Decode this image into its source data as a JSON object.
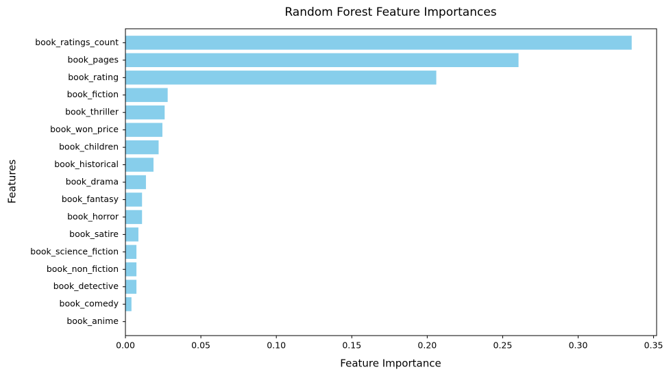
{
  "chart_data": {
    "type": "barh",
    "title": "Random Forest Feature Importances",
    "x_label": "Feature Importance",
    "y_label": "Features",
    "categories": [
      "book_ratings_count",
      "book_pages",
      "book_rating",
      "book_fiction",
      "book_thriller",
      "book_won_price",
      "book_children",
      "book_historical",
      "book_drama",
      "book_fantasy",
      "book_horror",
      "book_satire",
      "book_science_fiction",
      "book_non_fiction",
      "book_detective",
      "book_comedy",
      "book_anime"
    ],
    "values": [
      0.3355,
      0.2605,
      0.206,
      0.028,
      0.026,
      0.0245,
      0.022,
      0.0186,
      0.0136,
      0.011,
      0.011,
      0.0086,
      0.0073,
      0.0073,
      0.0073,
      0.004,
      0
    ],
    "color": "#87ceeb",
    "xlim": [
      0,
      0.352
    ],
    "xticks": [
      {
        "value": 0,
        "label": "0.00"
      },
      {
        "value": 0.05,
        "label": "0.05"
      },
      {
        "value": 0.1,
        "label": "0.10"
      },
      {
        "value": 0.15,
        "label": "0.15"
      },
      {
        "value": 0.2,
        "label": "0.20"
      },
      {
        "value": 0.25,
        "label": "0.25"
      },
      {
        "value": 0.3,
        "label": "0.30"
      },
      {
        "value": 0.35,
        "label": "0.35"
      }
    ]
  }
}
